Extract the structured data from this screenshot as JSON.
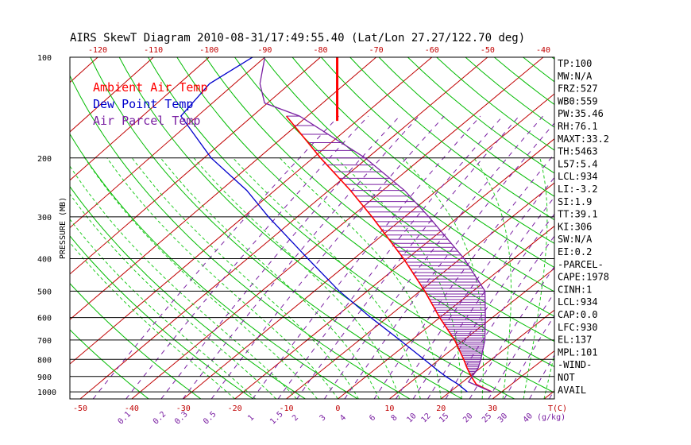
{
  "chart_data": {
    "type": "line",
    "title": "AIRS SkewT Diagram 2010-08-31/17:49:55.40 (Lat/Lon 27.27/122.70 deg)",
    "ylabel": "PRESSURE (MB)",
    "xlabel": "T(C)",
    "mixing_ratio_unit": "(g/kg)",
    "pressure_ticks": [
      100,
      200,
      300,
      400,
      500,
      600,
      700,
      800,
      900,
      1000
    ],
    "pressure_range": [
      100,
      1050
    ],
    "bottom_temp_range": [
      -52,
      42
    ],
    "top_temp_range": [
      -125,
      -38
    ],
    "bottom_temp_ticks": [
      "-50",
      "-40",
      "-30",
      "-20",
      "-10",
      "0",
      "10",
      "20",
      "30"
    ],
    "top_temp_ticks": [
      "-120",
      "-110",
      "-100",
      "-90",
      "-80",
      "-70",
      "-60",
      "-50",
      "-40"
    ],
    "mixing_ratio_labels": [
      "0.1",
      "0.2",
      "0.3",
      "0.5",
      "1",
      "1.5",
      "2",
      "3",
      "4",
      "6",
      "8",
      "10",
      "12",
      "15",
      "20",
      "25",
      "30",
      "40"
    ],
    "legend": [
      {
        "label": "Ambient Air Temp",
        "color": "#ff0000"
      },
      {
        "label": "Dew Point Temp",
        "color": "#0000cc"
      },
      {
        "label": "Air Parcel Temp",
        "color": "#7a1fa2"
      }
    ],
    "series": [
      {
        "name": "Ambient Air Temp",
        "pressure": [
          1000,
          950,
          900,
          850,
          800,
          700,
          600,
          500,
          400,
          300,
          250,
          200,
          150
        ],
        "temp_c": [
          28.2,
          23.5,
          20.7,
          18.0,
          15.3,
          9.1,
          1.1,
          -7.8,
          -19.2,
          -34.6,
          -44.6,
          -57.4,
          -73.0
        ]
      },
      {
        "name": "Dew Point Temp",
        "pressure": [
          1000,
          950,
          900,
          850,
          800,
          700,
          600,
          500,
          400,
          300,
          250,
          200,
          150,
          120,
          100
        ],
        "temp_c": [
          23.5,
          20.0,
          15.8,
          11.8,
          7.7,
          -1.4,
          -12.0,
          -24.0,
          -37.2,
          -53.9,
          -63.8,
          -77.5,
          -92.2,
          -94.1,
          -92.2
        ]
      },
      {
        "name": "Air Parcel Temp",
        "pressure": [
          1000,
          934,
          900,
          850,
          800,
          700,
          600,
          500,
          400,
          300,
          250,
          200,
          150,
          137,
          120,
          100
        ],
        "temp_c": [
          28.2,
          21.4,
          20.9,
          20.1,
          18.6,
          14.9,
          9.8,
          3.6,
          -7.8,
          -24.0,
          -34.6,
          -49.2,
          -70.6,
          -79.9,
          -85.0,
          -90.0
        ]
      }
    ],
    "tropopause_marker": {
      "temp_c": -77.0,
      "pressure_top": 100,
      "pressure_bottom": 155
    }
  },
  "indices": [
    "TP:100",
    "MW:N/A",
    "FRZ:527",
    "WB0:559",
    "PW:35.46",
    "RH:76.1",
    "MAXT:33.2",
    "TH:5463",
    "L57:5.4",
    "LCL:934",
    "LI:-3.2",
    "SI:1.9",
    "TT:39.1",
    "KI:306",
    "SW:N/A",
    "EI:0.2",
    "-PARCEL-",
    "CAPE:1978",
    "CINH:1",
    "LCL:934",
    "CAP:0.0",
    "LFC:930",
    "EL:137",
    "MPL:101",
    "-WIND-",
    "NOT",
    "AVAIL"
  ],
  "colors": {
    "temp": "#ff0000",
    "dew": "#0000cc",
    "parcel": "#7a1fa2",
    "isotherm": "#c00000",
    "dry_adiabat": "#00bb00",
    "moist_adiabat": "#22cc22",
    "mixing_ratio": "#7a1fa2",
    "isobar": "#000000"
  }
}
